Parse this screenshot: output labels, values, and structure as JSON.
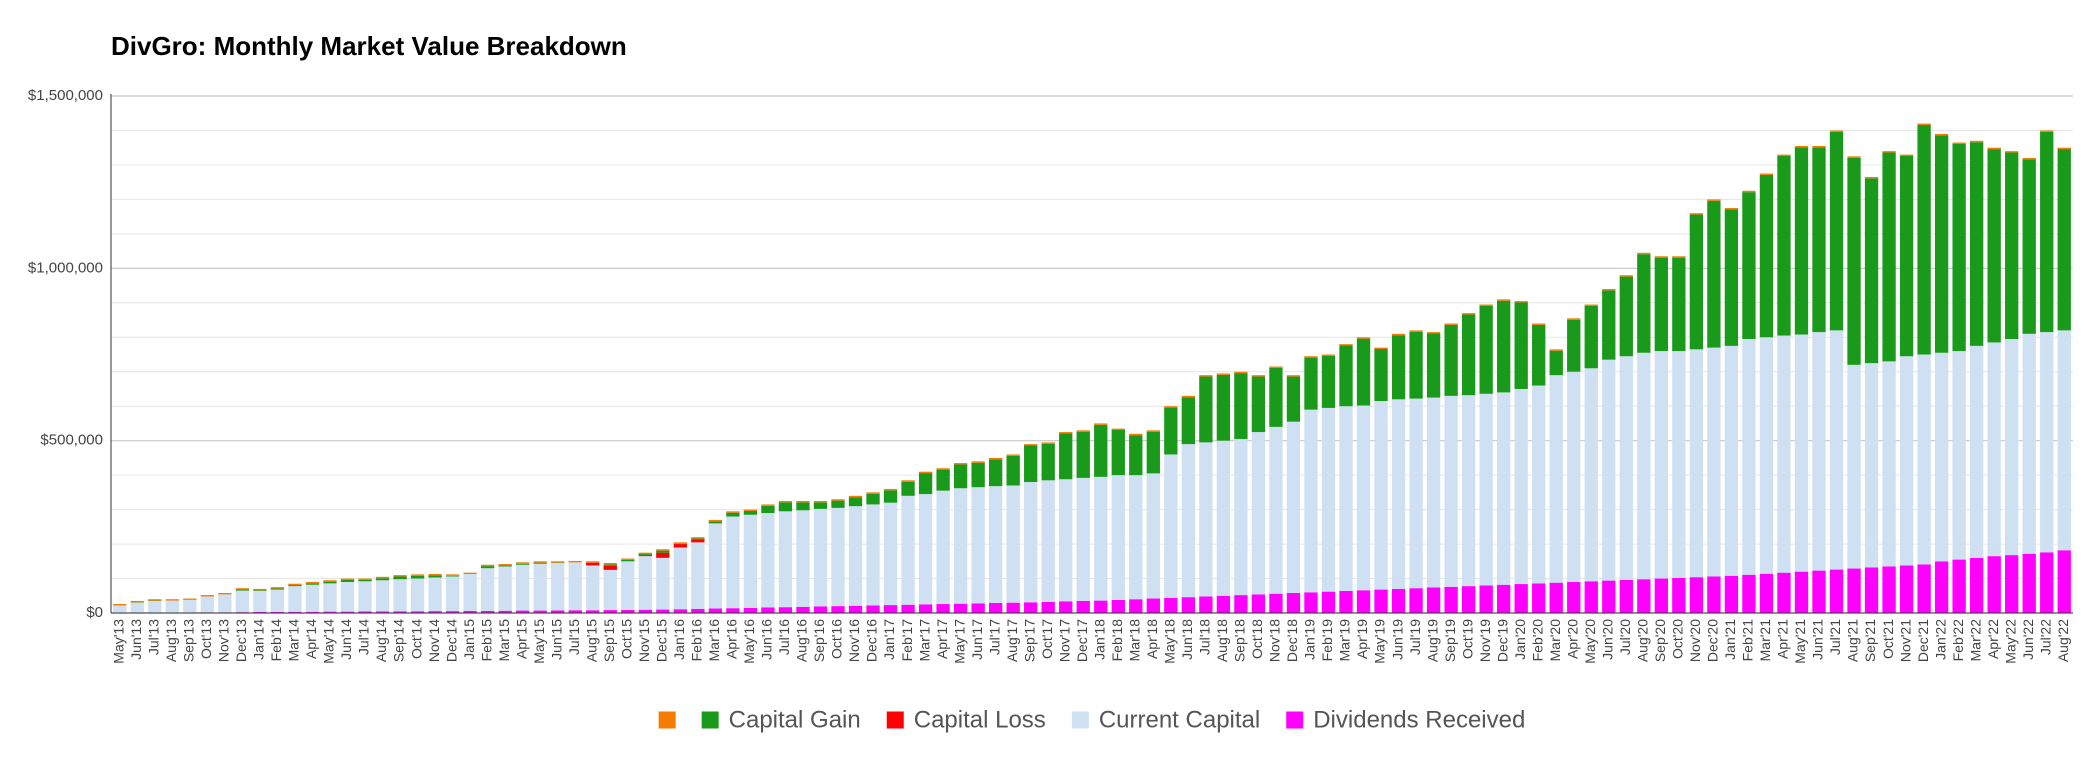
{
  "chart_data": {
    "type": "bar",
    "stacked": true,
    "title": "DivGro: Monthly Market Value Breakdown",
    "categories": [
      "May'13",
      "Jun'13",
      "Jul'13",
      "Aug'13",
      "Sep'13",
      "Oct'13",
      "Nov'13",
      "Dec'13",
      "Jan'14",
      "Feb'14",
      "Mar'14",
      "Apr'14",
      "May'14",
      "Jun'14",
      "Jul'14",
      "Aug'14",
      "Sep'14",
      "Oct'14",
      "Nov'14",
      "Dec'14",
      "Jan'15",
      "Feb'15",
      "Mar'15",
      "Apr'15",
      "May'15",
      "Jun'15",
      "Jul'15",
      "Aug'15",
      "Sep'15",
      "Oct'15",
      "Nov'15",
      "Dec'15",
      "Jan'16",
      "Feb'16",
      "Mar'16",
      "Apr'16",
      "May'16",
      "Jun'16",
      "Jul'16",
      "Aug'16",
      "Sep'16",
      "Oct'16",
      "Nov'16",
      "Dec'16",
      "Jan'17",
      "Feb'17",
      "Mar'17",
      "Apr'17",
      "May'17",
      "Jun'17",
      "Jul'17",
      "Aug'17",
      "Sep'17",
      "Oct'17",
      "Nov'17",
      "Dec'17",
      "Jan'18",
      "Feb'18",
      "Mar'18",
      "Apr'18",
      "May'18",
      "Jun'18",
      "Jul'18",
      "Aug'18",
      "Sep'18",
      "Oct'18",
      "Nov'18",
      "Dec'18",
      "Jan'19",
      "Feb'19",
      "Mar'19",
      "Apr'19",
      "May'19",
      "Jun'19",
      "Jul'19",
      "Aug'19",
      "Sep'19",
      "Oct'19",
      "Nov'19",
      "Dec'19",
      "Jan'20",
      "Feb'20",
      "Mar'20",
      "Apr'20",
      "May'20",
      "Jun'20",
      "Jul'20",
      "Aug'20",
      "Sep'20",
      "Oct'20",
      "Nov'20",
      "Dec'20",
      "Jan'21",
      "Feb'21",
      "Mar'21",
      "Apr'21",
      "May'21",
      "Jun'21",
      "Jul'21",
      "Aug'21",
      "Sep'21",
      "Oct'21",
      "Nov'21",
      "Dec'21",
      "Jan'22",
      "Feb'22",
      "Mar'22",
      "Apr'22",
      "May'22",
      "Jun'22",
      "Jul'22",
      "Aug'22"
    ],
    "series": [
      {
        "name": null,
        "color": "#f57c00",
        "values": [
          4000,
          4000,
          4000,
          4000,
          4000,
          4000,
          4000,
          4000,
          4000,
          4000,
          4000,
          4000,
          4000,
          4000,
          4000,
          4000,
          4000,
          4000,
          4000,
          4000,
          4000,
          4000,
          4000,
          4000,
          4000,
          4000,
          4000,
          4000,
          4000,
          4000,
          4000,
          4000,
          4000,
          4000,
          4000,
          4000,
          4000,
          4000,
          4000,
          4000,
          4000,
          4000,
          4000,
          4000,
          4000,
          4000,
          4000,
          4000,
          4000,
          4000,
          4000,
          4000,
          4000,
          4000,
          4000,
          4000,
          4000,
          4000,
          4000,
          4000,
          4000,
          4000,
          4000,
          4000,
          4000,
          4000,
          4000,
          4000,
          4000,
          4000,
          4000,
          4000,
          4000,
          4000,
          4000,
          4000,
          4000,
          4000,
          4000,
          4000,
          4000,
          4000,
          4000,
          4000,
          4000,
          4000,
          4000,
          4000,
          4000,
          4000,
          4000,
          4000,
          4000,
          4000,
          4000,
          4000,
          4000,
          4000,
          4000,
          4000,
          4000,
          4000,
          4000,
          4000,
          4000,
          4000,
          4000,
          4000,
          4000,
          4000,
          4000,
          4000
        ]
      },
      {
        "name": "Capital Gain",
        "color": "#1a9a1a",
        "values": [
          0,
          1000,
          1000,
          0,
          0,
          0,
          0,
          3000,
          2000,
          3000,
          3000,
          4000,
          5000,
          6000,
          4000,
          6000,
          8000,
          8000,
          6000,
          2000,
          0,
          6000,
          3000,
          3000,
          3000,
          1000,
          0,
          0,
          4000,
          4000,
          3000,
          6000,
          1000,
          3000,
          6000,
          11000,
          11000,
          21000,
          26000,
          23000,
          19000,
          21000,
          26000,
          31000,
          36000,
          41000,
          61000,
          61000,
          69000,
          71000,
          78000,
          86000,
          106000,
          106000,
          133000,
          134000,
          151000,
          131000,
          116000,
          121000,
          136000,
          136000,
          191000,
          191000,
          191000,
          161000,
          171000,
          131000,
          151000,
          151000,
          176000,
          194000,
          151000,
          186000,
          194000,
          186000,
          206000,
          234000,
          255000,
          266000,
          251000,
          176000,
          71000,
          151000,
          181000,
          201000,
          231000,
          286000,
          271000,
          271000,
          391000,
          426000,
          396000,
          426000,
          471000,
          521000,
          543000,
          536000,
          576000,
          601000,
          536000,
          606000,
          581000,
          666000,
          631000,
          601000,
          591000,
          561000,
          541000,
          506000,
          581000,
          526000
        ]
      },
      {
        "name": "Capital Loss",
        "color": "#ff0000",
        "values": [
          0,
          0,
          0,
          0,
          0,
          0,
          0,
          0,
          0,
          0,
          0,
          0,
          0,
          0,
          0,
          0,
          0,
          0,
          0,
          0,
          0,
          0,
          0,
          0,
          0,
          0,
          0,
          8000,
          12000,
          0,
          3000,
          15000,
          10000,
          8000,
          0,
          0,
          0,
          0,
          0,
          0,
          0,
          0,
          0,
          0,
          0,
          0,
          0,
          0,
          0,
          0,
          0,
          0,
          0,
          0,
          0,
          0,
          0,
          0,
          0,
          0,
          0,
          0,
          0,
          0,
          0,
          0,
          0,
          0,
          0,
          0,
          0,
          0,
          0,
          0,
          0,
          0,
          0,
          0,
          0,
          0,
          0,
          0,
          0,
          0,
          0,
          0,
          0,
          0,
          0,
          0,
          0,
          0,
          0,
          0,
          0,
          0,
          0,
          0,
          0,
          0,
          0,
          0,
          0,
          0,
          0,
          0,
          0,
          0,
          0,
          0,
          0,
          0
        ]
      },
      {
        "name": "Current Capital",
        "color": "#cfe0f3",
        "values": [
          21500,
          29000,
          34000,
          34500,
          36500,
          46000,
          52000,
          62500,
          61000,
          65000,
          74500,
          78500,
          82000,
          86000,
          87500,
          90500,
          93000,
          95000,
          97500,
          100500,
          107000,
          124000,
          128500,
          133000,
          136000,
          137500,
          139000,
          130000,
          116500,
          141000,
          155500,
          150000,
          179000,
          193000,
          247000,
          266000,
          270000,
          274000,
          278000,
          280000,
          283000,
          285000,
          289000,
          293000,
          297000,
          316000,
          320000,
          329000,
          335000,
          337000,
          339000,
          340000,
          349000,
          353000,
          354000,
          357000,
          359000,
          362000,
          360000,
          363000,
          416000,
          444000,
          447000,
          450000,
          453000,
          471000,
          484000,
          497000,
          530000,
          533000,
          536000,
          536000,
          547000,
          550000,
          550000,
          551000,
          554000,
          554000,
          556000,
          558000,
          566000,
          574000,
          602000,
          610000,
          618000,
          641000,
          649000,
          657000,
          660000,
          658000,
          661000,
          664000,
          667000,
          684000,
          686000,
          688000,
          688000,
          692000,
          694000,
          591000,
          593000,
          595000,
          607000,
          609000,
          605000,
          605000,
          615000,
          620000,
          627000,
          638000,
          639000,
          638000
        ]
      },
      {
        "name": "Dividends Received",
        "color": "#ff00ff",
        "values": [
          500,
          1000,
          1000,
          1500,
          1500,
          2000,
          2000,
          2500,
          3000,
          3000,
          3500,
          3500,
          4000,
          4000,
          4500,
          4500,
          5000,
          5000,
          5500,
          5500,
          6000,
          6000,
          6500,
          7000,
          7000,
          7500,
          8000,
          8000,
          8500,
          9000,
          9500,
          10000,
          11000,
          12000,
          13000,
          14000,
          15000,
          16000,
          17000,
          18000,
          19000,
          20000,
          21000,
          22000,
          23000,
          24000,
          25000,
          26000,
          27000,
          28000,
          29000,
          30000,
          31000,
          32000,
          34000,
          35000,
          36000,
          38000,
          40000,
          42000,
          44000,
          46000,
          48000,
          50000,
          52000,
          54000,
          56000,
          58000,
          60000,
          62000,
          64000,
          66000,
          68000,
          70000,
          72000,
          74000,
          76000,
          78000,
          80000,
          82000,
          84000,
          86000,
          88000,
          90000,
          92000,
          94000,
          96000,
          98000,
          100000,
          102000,
          104000,
          106000,
          108000,
          111000,
          114000,
          117000,
          120000,
          123000,
          126000,
          129000,
          132000,
          135000,
          138000,
          141000,
          150000,
          155000,
          160000,
          165000,
          168000,
          172000,
          176000,
          182000
        ]
      }
    ],
    "ylim": [
      0,
      1500000
    ],
    "yticks": [
      {
        "value": 0,
        "label": "$0"
      },
      {
        "value": 500000,
        "label": "$500,000"
      },
      {
        "value": 1000000,
        "label": "$1,000,000"
      },
      {
        "value": 1500000,
        "label": "$1,500,000"
      }
    ],
    "minor_yticks": [
      100000,
      200000,
      300000,
      400000,
      600000,
      700000,
      800000,
      900000,
      1100000,
      1200000,
      1300000,
      1400000
    ],
    "grid": true,
    "legend": "bottom"
  }
}
